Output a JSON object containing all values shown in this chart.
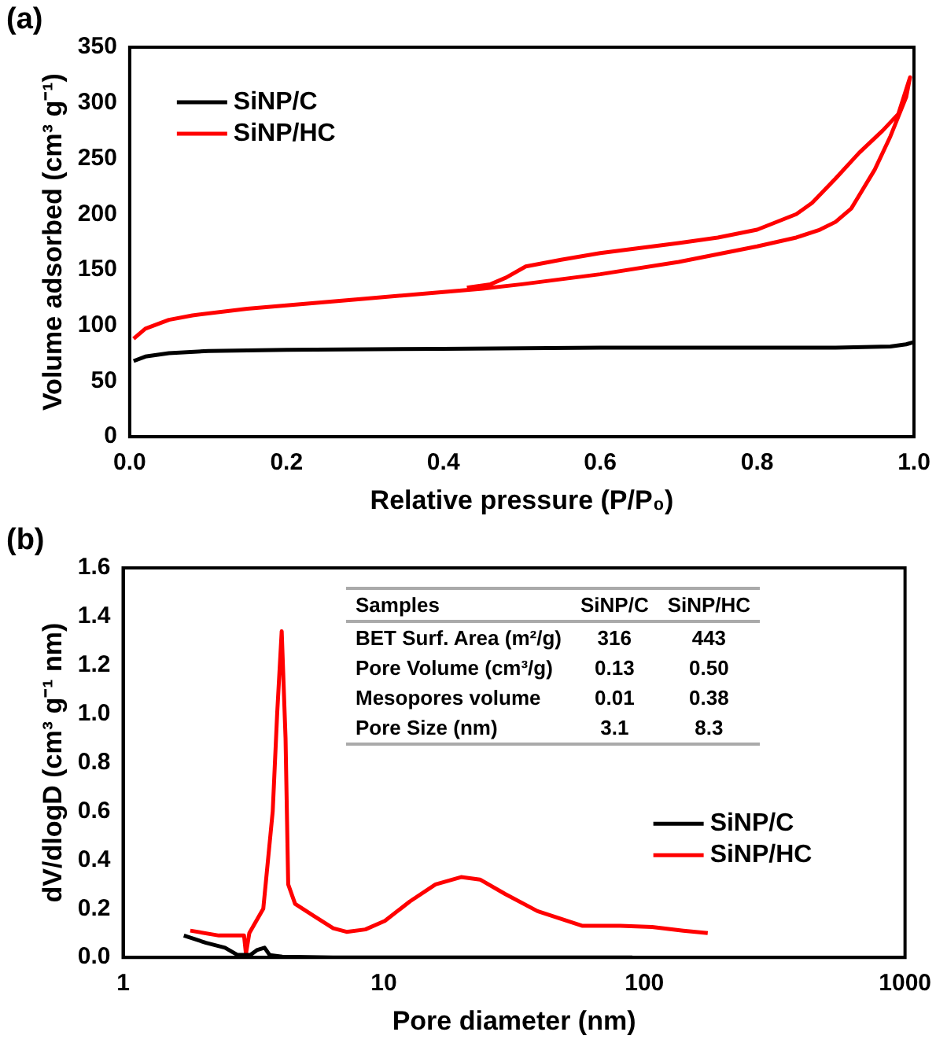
{
  "chart_data": [
    {
      "type": "line",
      "title": "(a)",
      "xlabel": "Relative pressure (P/P₀)",
      "ylabel": "Volume adsorbed (cm³ g⁻¹)",
      "xlim": [
        0,
        1
      ],
      "xticks": [
        {
          "value": 0,
          "label": "0.0"
        },
        0.2,
        0.4,
        0.6,
        0.8,
        {
          "value": 1,
          "label": "1.0"
        }
      ],
      "ylim": [
        0,
        350
      ],
      "yticks": [
        0,
        50,
        100,
        150,
        200,
        250,
        300,
        350
      ],
      "grid": false,
      "legend": "top left",
      "marker": "none",
      "line_style": "solid",
      "series": [
        {
          "name": "SiNP/C",
          "color": "#000000",
          "x": [
            0.005,
            0.02,
            0.05,
            0.1,
            0.2,
            0.4,
            0.6,
            0.8,
            0.9,
            0.97,
            0.99,
            1.0
          ],
          "values": [
            68,
            72,
            75,
            77,
            78,
            79,
            80,
            80,
            80,
            81,
            83,
            85
          ]
        },
        {
          "name": "SiNP/HC",
          "color": "#ff0000",
          "x": [
            0.005,
            0.02,
            0.05,
            0.08,
            0.15,
            0.2,
            0.3,
            0.4,
            0.45,
            0.5,
            0.6,
            0.7,
            0.8,
            0.85,
            0.88,
            0.9,
            0.92,
            0.95,
            0.97,
            0.99,
            0.995,
            0.98,
            0.96,
            0.93,
            0.9,
            0.87,
            0.85,
            0.8,
            0.75,
            0.7,
            0.6,
            0.55,
            0.505,
            0.48,
            0.46,
            0.43
          ],
          "values": [
            88,
            97,
            105,
            109,
            115,
            118,
            124,
            130,
            133,
            137,
            146,
            157,
            171,
            179,
            186,
            193,
            205,
            240,
            270,
            305,
            323,
            290,
            275,
            255,
            232,
            210,
            200,
            186,
            179,
            174,
            165,
            159,
            153,
            143,
            137,
            134
          ]
        }
      ]
    },
    {
      "type": "line",
      "title": "(b)",
      "xlabel": "Pore diameter (nm)",
      "ylabel": "dV/dlogD (cm³ g⁻¹ nm)",
      "log": "x",
      "xlim": [
        1,
        1000
      ],
      "xticks": [
        1,
        10,
        100,
        1000
      ],
      "ylim": [
        0,
        1.6
      ],
      "yticks": [
        {
          "value": 0,
          "label": "0.0"
        },
        0.2,
        0.4,
        0.6,
        0.8,
        {
          "value": 1,
          "label": "1.0"
        },
        1.2,
        1.4,
        1.6
      ],
      "grid": false,
      "legend": "bottom right",
      "marker": "none",
      "line_style": "solid",
      "series": [
        {
          "name": "SiNP/C",
          "color": "#000000",
          "x": [
            1.71,
            2.08,
            2.46,
            2.75,
            3.08,
            3.26,
            3.49,
            3.65,
            4.08,
            6.4,
            90
          ],
          "values": [
            0.09,
            0.06,
            0.04,
            0.01,
            0.01,
            0.03,
            0.04,
            0.01,
            0.003,
            0,
            0
          ]
        },
        {
          "name": "SiNP/HC",
          "color": "#ff0000",
          "x": [
            1.81,
            2.33,
            2.91,
            2.96,
            3.05,
            3.45,
            3.75,
            3.9,
            4.06,
            4.2,
            4.3,
            4.57,
            5.4,
            6.4,
            7.2,
            8.5,
            10.1,
            12.6,
            15.8,
            19.8,
            23.4,
            29.3,
            38.9,
            57.6,
            80.9,
            107,
            141,
            175
          ],
          "values": [
            0.11,
            0.09,
            0.09,
            0.015,
            0.1,
            0.2,
            0.6,
            1.0,
            1.34,
            0.9,
            0.3,
            0.22,
            0.17,
            0.12,
            0.105,
            0.115,
            0.15,
            0.23,
            0.3,
            0.33,
            0.32,
            0.26,
            0.19,
            0.13,
            0.13,
            0.125,
            0.11,
            0.1
          ]
        }
      ],
      "annotations": [
        "Samples",
        "SiNP/C",
        "SiNP/HC",
        "BET Surf. Area (m²/g)",
        "316",
        "443",
        "Pore Volume (cm³/g)",
        "0.13",
        "0.50",
        "Mesopores volume",
        "0.01",
        "0.38",
        "Pore Size (nm)",
        "3.1",
        "8.3"
      ]
    }
  ]
}
